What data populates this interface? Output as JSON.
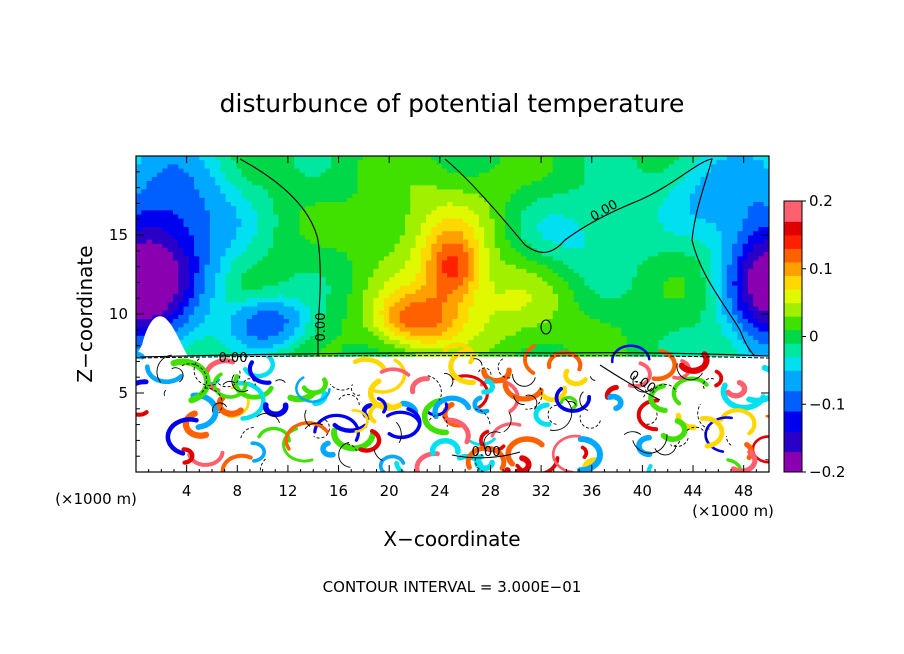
{
  "chart_data": {
    "type": "heatmap",
    "title": "disturbunce of potential temperature",
    "xlabel": "X−coordinate",
    "ylabel": "Z−coordinate",
    "x_unit_left": "(×1000 m)",
    "x_unit_right": "(×1000 m)",
    "footer": "CONTOUR INTERVAL = 3.000E−01",
    "xlim": [
      0,
      50
    ],
    "ylim": [
      0,
      20
    ],
    "x_ticks": [
      4,
      8,
      12,
      16,
      20,
      24,
      28,
      32,
      36,
      40,
      44,
      48
    ],
    "x_tick_labels": [
      "4",
      "8",
      "12",
      "16",
      "20",
      "24",
      "28",
      "32",
      "36",
      "40",
      "44",
      "48"
    ],
    "y_ticks": [
      5,
      10,
      15
    ],
    "y_tick_labels": [
      "5",
      "10",
      "15"
    ],
    "colorbar": {
      "range": [
        -0.2,
        0.2
      ],
      "ticks": [
        -0.2,
        -0.1,
        0,
        0.1,
        0.2
      ],
      "tick_labels": [
        "−0.2",
        "−0.1",
        "0",
        "0.1",
        "0.2"
      ]
    },
    "contour_labels": [
      "0.00",
      "0.00",
      "0.00",
      "0.00",
      "0.00"
    ]
  }
}
